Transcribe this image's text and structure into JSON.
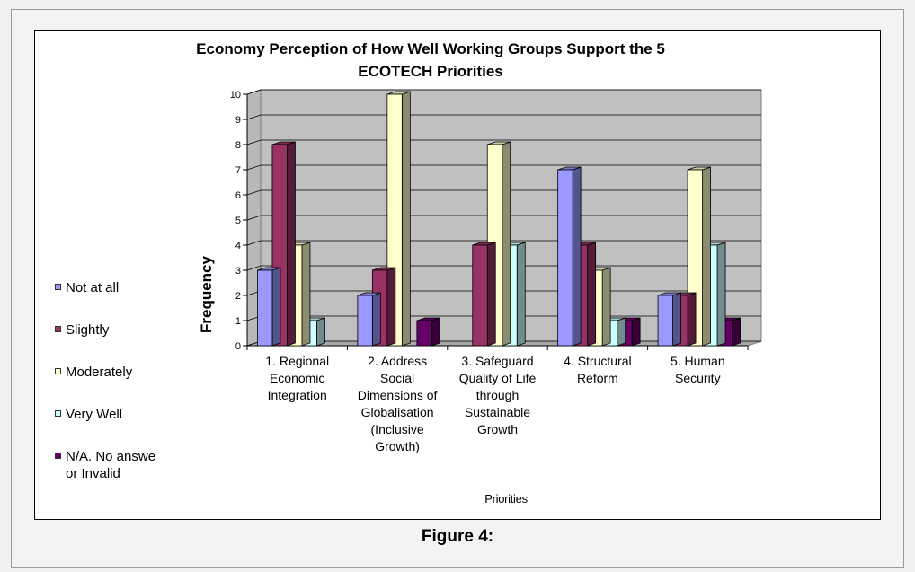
{
  "chart_data": {
    "type": "bar",
    "title": "Economy Perception of How Well Working Groups Support the 5 ECOTECH Priorities",
    "xlabel": "Priorities",
    "ylabel": "Frequency",
    "ylim": [
      0,
      10
    ],
    "yticks": [
      "0",
      "1",
      "2",
      "3",
      "4",
      "5",
      "6",
      "7",
      "8",
      "9",
      "10"
    ],
    "grid": true,
    "legend_position": "left",
    "categories": [
      "1. Regional Economic Integration",
      "2. Address Social Dimensions of Globalisation (Inclusive Growth)",
      "3. Safeguard Quality of Life through Sustainable Growth",
      "4. Structural Reform",
      "5. Human Security"
    ],
    "series": [
      {
        "name": "Not at all",
        "color": "#9999ff",
        "values": [
          3,
          2,
          0,
          7,
          2
        ]
      },
      {
        "name": "Slightly",
        "color": "#993366",
        "values": [
          8,
          3,
          4,
          4,
          2
        ]
      },
      {
        "name": "Moderately",
        "color": "#ffffcc",
        "values": [
          4,
          10,
          8,
          3,
          7
        ]
      },
      {
        "name": "Very Well",
        "color": "#ccffff",
        "values": [
          1,
          0,
          4,
          1,
          4
        ]
      },
      {
        "name": "N/A. No answe or Invalid",
        "color": "#660066",
        "values": [
          0,
          1,
          0,
          1,
          1
        ]
      }
    ]
  },
  "caption": "Figure 4:"
}
